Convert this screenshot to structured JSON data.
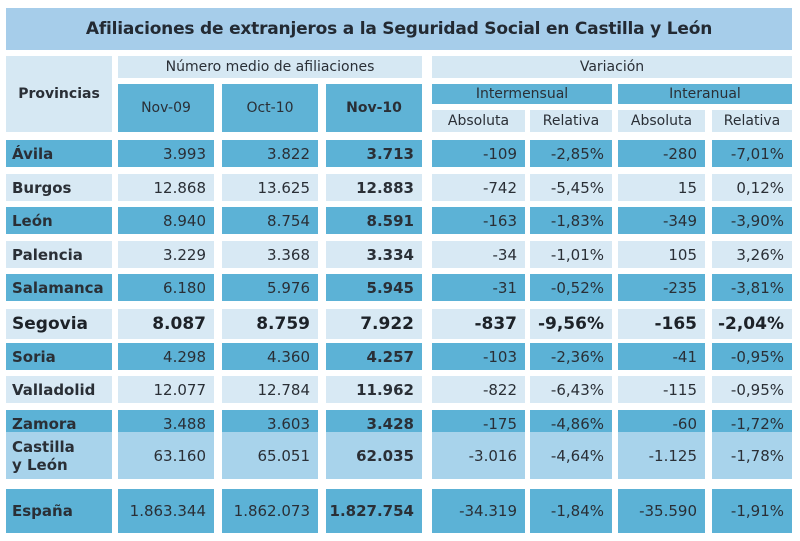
{
  "title": "Afiliaciones de extranjeros a la Seguridad Social en Castilla y León",
  "headers": {
    "provincias": "Provincias",
    "numero_medio": "Número medio de afiliaciones",
    "variacion": "Variación",
    "months": [
      "Nov-09",
      "Oct-10",
      "Nov-10"
    ],
    "intermensual": "Intermensual",
    "interanual": "Interanual",
    "absoluta": "Absoluta",
    "relativa": "Relativa"
  },
  "colors": {
    "title_bg": "#a6cdea",
    "dark_row": "#5cb2d6",
    "light_row": "#d8e9f4",
    "total_row": "#a8d3eb"
  },
  "rows": [
    {
      "provincia": "Ávila",
      "nov09": "3.993",
      "oct10": "3.822",
      "nov10": "3.713",
      "im_abs": "-109",
      "im_rel": "-2,85%",
      "ia_abs": "-280",
      "ia_rel": "-7,01%"
    },
    {
      "provincia": "Burgos",
      "nov09": "12.868",
      "oct10": "13.625",
      "nov10": "12.883",
      "im_abs": "-742",
      "im_rel": "-5,45%",
      "ia_abs": "15",
      "ia_rel": "0,12%"
    },
    {
      "provincia": "León",
      "nov09": "8.940",
      "oct10": "8.754",
      "nov10": "8.591",
      "im_abs": "-163",
      "im_rel": "-1,83%",
      "ia_abs": "-349",
      "ia_rel": "-3,90%"
    },
    {
      "provincia": "Palencia",
      "nov09": "3.229",
      "oct10": "3.368",
      "nov10": "3.334",
      "im_abs": "-34",
      "im_rel": "-1,01%",
      "ia_abs": "105",
      "ia_rel": "3,26%"
    },
    {
      "provincia": "Salamanca",
      "nov09": "6.180",
      "oct10": "5.976",
      "nov10": "5.945",
      "im_abs": "-31",
      "im_rel": "-0,52%",
      "ia_abs": "-235",
      "ia_rel": "-3,81%"
    },
    {
      "provincia": "Segovia",
      "nov09": "8.087",
      "oct10": "8.759",
      "nov10": "7.922",
      "im_abs": "-837",
      "im_rel": "-9,56%",
      "ia_abs": "-165",
      "ia_rel": "-2,04%"
    },
    {
      "provincia": "Soria",
      "nov09": "4.298",
      "oct10": "4.360",
      "nov10": "4.257",
      "im_abs": "-103",
      "im_rel": "-2,36%",
      "ia_abs": "-41",
      "ia_rel": "-0,95%"
    },
    {
      "provincia": "Valladolid",
      "nov09": "12.077",
      "oct10": "12.784",
      "nov10": "11.962",
      "im_abs": "-822",
      "im_rel": "-6,43%",
      "ia_abs": "-115",
      "ia_rel": "-0,95%"
    },
    {
      "provincia": "Zamora",
      "nov09": "3.488",
      "oct10": "3.603",
      "nov10": "3.428",
      "im_abs": "-175",
      "im_rel": "-4,86%",
      "ia_abs": "-60",
      "ia_rel": "-1,72%"
    },
    {
      "provincia": "Castilla y León",
      "nov09": "63.160",
      "oct10": "65.051",
      "nov10": "62.035",
      "im_abs": "-3.016",
      "im_rel": "-4,64%",
      "ia_abs": "-1.125",
      "ia_rel": "-1,78%"
    },
    {
      "provincia": "España",
      "nov09": "1.863.344",
      "oct10": "1.862.073",
      "nov10": "1.827.754",
      "im_abs": "-34.319",
      "im_rel": "-1,84%",
      "ia_abs": "-35.590",
      "ia_rel": "-1,91%"
    }
  ],
  "castilla_lines": [
    "Castilla",
    "y León"
  ]
}
